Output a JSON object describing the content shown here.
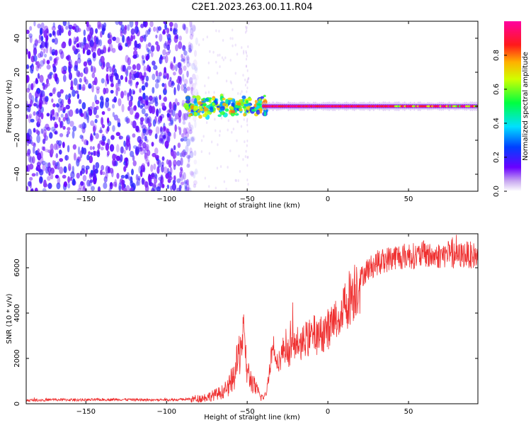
{
  "figure_title": "C2E1.2023.263.00.11.R04",
  "colors": {
    "snr_line": "#ef3030",
    "axis": "#000000",
    "background": "#ffffff"
  },
  "chart_data": [
    {
      "type": "heatmap",
      "title": "",
      "xlabel": "Height of straight line (km)",
      "ylabel": "Frequency (Hz)",
      "xlim": [
        -187,
        93
      ],
      "ylim": [
        -50,
        50
      ],
      "xticks": [
        -150,
        -100,
        -50,
        0,
        50
      ],
      "yticks": [
        -40,
        -20,
        0,
        20,
        40
      ],
      "colorbar": {
        "label": "Normalized spectral amplitude",
        "range": [
          0,
          1
        ],
        "ticks": [
          0.0,
          0.2,
          0.4,
          0.6,
          0.8
        ],
        "colormap": "hsv-rainbow (violet→blue→cyan→green→yellow→red→magenta)"
      },
      "regions": [
        {
          "description": "diffuse noise",
          "x_range": [
            -187,
            -80
          ],
          "freq_range": [
            -50,
            50
          ],
          "amplitude": 0.1
        },
        {
          "description": "signal onset",
          "x_range": [
            -88,
            -38
          ],
          "freq_range": [
            -5,
            5
          ],
          "amplitude": 0.5
        },
        {
          "description": "carrier line",
          "x_range": [
            -40,
            93
          ],
          "freq_range": [
            -2,
            2
          ],
          "amplitude": 0.95
        }
      ],
      "grid": false
    },
    {
      "type": "line",
      "title": "",
      "xlabel": "Height of straight line (km)",
      "ylabel": "SNR (10 * v/v)",
      "xlim": [
        -187,
        93
      ],
      "ylim": [
        0,
        7500
      ],
      "xticks": [
        -150,
        -100,
        -50,
        0,
        50
      ],
      "yticks": [
        0,
        2000,
        4000,
        6000
      ],
      "grid": false,
      "series": [
        {
          "x": [
            -187,
            -170,
            -150,
            -130,
            -110,
            -95,
            -85,
            -78,
            -72,
            -66,
            -62,
            -58,
            -55,
            -53,
            -52,
            -51,
            -50,
            -48,
            -45,
            -42,
            -40,
            -38,
            -36,
            -34,
            -32,
            -30,
            -28,
            -26,
            -24,
            -22,
            -20,
            -18,
            -16,
            -14,
            -12,
            -10,
            -8,
            -6,
            -4,
            -2,
            0,
            2,
            4,
            6,
            8,
            10,
            12,
            14,
            16,
            18,
            20,
            22,
            24,
            26,
            28,
            30,
            34,
            38,
            42,
            46,
            50,
            55,
            60,
            65,
            70,
            75,
            80,
            85,
            90,
            93
          ],
          "y": [
            150,
            180,
            170,
            190,
            170,
            180,
            200,
            250,
            350,
            500,
            700,
            1200,
            2200,
            3000,
            2600,
            2000,
            1400,
            1100,
            700,
            350,
            250,
            500,
            1700,
            2600,
            2200,
            1900,
            2300,
            2600,
            2200,
            2700,
            2500,
            2800,
            2600,
            2900,
            2800,
            3000,
            3100,
            2900,
            3100,
            3200,
            3300,
            3400,
            3600,
            3800,
            4000,
            4300,
            4500,
            4800,
            5000,
            5300,
            5500,
            5700,
            5900,
            6000,
            6100,
            6200,
            6300,
            6400,
            6500,
            6500,
            6550,
            6500,
            6600,
            6500,
            6550,
            6600,
            6500,
            6600,
            6550,
            6500
          ]
        }
      ]
    }
  ]
}
